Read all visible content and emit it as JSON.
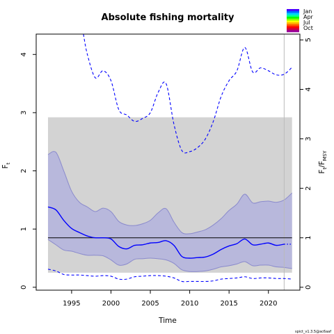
{
  "chart_data": {
    "type": "line",
    "title": "Absolute fishing mortality",
    "xlabel": "Time",
    "ylabel_left": {
      "main": "F",
      "sub": "t"
    },
    "ylabel_right": {
      "main": "F",
      "sub1": "t",
      "sep": "/F",
      "sub2": "MSY"
    },
    "xlim": [
      1990.5,
      2024
    ],
    "ylim": [
      -0.05,
      4.35
    ],
    "x_ticks": [
      1995,
      2000,
      2005,
      2010,
      2015,
      2020
    ],
    "y_ticks": [
      0,
      1,
      2,
      3,
      4
    ],
    "right_axis": {
      "fmsy": 0.85,
      "ticks": [
        0,
        1,
        2,
        3,
        4,
        5
      ]
    },
    "grid": false,
    "msy_band": {
      "x": [
        1992,
        2023
      ],
      "lower": 0.25,
      "upper": 2.92,
      "color": "#d3d3d3"
    },
    "reference_line": {
      "value": 0.85,
      "color": "#000000"
    },
    "last_obs_line": {
      "x": 2022,
      "color": "#bbbbbb"
    },
    "series": [
      {
        "role": "estimate",
        "color": "#0000ff",
        "x": [
          1992,
          1993,
          1994,
          1995,
          1996,
          1997,
          1998,
          1999,
          2000,
          2001,
          2002,
          2003,
          2004,
          2005,
          2006,
          2007,
          2008,
          2009,
          2010,
          2011,
          2012,
          2013,
          2014,
          2015,
          2016,
          2017,
          2018,
          2019,
          2020,
          2021,
          2022
        ],
        "y": [
          1.38,
          1.33,
          1.15,
          1.01,
          0.94,
          0.88,
          0.85,
          0.85,
          0.83,
          0.7,
          0.66,
          0.72,
          0.73,
          0.76,
          0.77,
          0.8,
          0.72,
          0.53,
          0.5,
          0.51,
          0.52,
          0.57,
          0.65,
          0.71,
          0.75,
          0.83,
          0.73,
          0.74,
          0.76,
          0.72,
          0.74
        ],
        "forecast": {
          "x": [
            2022,
            2023
          ],
          "y": [
            0.74,
            0.74
          ]
        }
      },
      {
        "role": "ci",
        "color": "#8a8acc",
        "x": [
          1992,
          1993,
          1994,
          1995,
          1996,
          1997,
          1998,
          1999,
          2000,
          2001,
          2002,
          2003,
          2004,
          2005,
          2006,
          2007,
          2008,
          2009,
          2010,
          2011,
          2012,
          2013,
          2014,
          2015,
          2016,
          2017,
          2018,
          2019,
          2020,
          2021,
          2022,
          2023
        ],
        "lower": [
          0.82,
          0.73,
          0.64,
          0.62,
          0.58,
          0.55,
          0.55,
          0.54,
          0.47,
          0.38,
          0.4,
          0.48,
          0.49,
          0.5,
          0.49,
          0.47,
          0.41,
          0.3,
          0.27,
          0.27,
          0.28,
          0.31,
          0.35,
          0.37,
          0.4,
          0.44,
          0.37,
          0.38,
          0.38,
          0.35,
          0.34,
          0.32
        ],
        "upper": [
          2.28,
          2.32,
          2.0,
          1.65,
          1.46,
          1.38,
          1.3,
          1.36,
          1.3,
          1.13,
          1.07,
          1.06,
          1.09,
          1.15,
          1.28,
          1.35,
          1.12,
          0.94,
          0.92,
          0.95,
          0.99,
          1.07,
          1.18,
          1.32,
          1.43,
          1.6,
          1.45,
          1.47,
          1.48,
          1.46,
          1.5,
          1.62
        ]
      },
      {
        "role": "fmsy_ci_lower",
        "color": "#0000ff",
        "x": [
          1992,
          1993,
          1994,
          1995,
          1996,
          1997,
          1998,
          1999,
          2000,
          2001,
          2002,
          2003,
          2004,
          2005,
          2006,
          2007,
          2008,
          2009,
          2010,
          2011,
          2012,
          2013,
          2014,
          2015,
          2016,
          2017,
          2018,
          2019,
          2020,
          2021,
          2022,
          2023
        ],
        "y": [
          0.31,
          0.28,
          0.22,
          0.21,
          0.21,
          0.2,
          0.19,
          0.2,
          0.19,
          0.14,
          0.14,
          0.18,
          0.19,
          0.2,
          0.2,
          0.19,
          0.16,
          0.1,
          0.1,
          0.1,
          0.1,
          0.11,
          0.14,
          0.15,
          0.16,
          0.18,
          0.15,
          0.16,
          0.16,
          0.15,
          0.15,
          0.14
        ]
      },
      {
        "role": "fmsy_ci_upper",
        "color": "#0000ff",
        "x": [
          1996.5,
          1997,
          1998,
          1999,
          2000,
          2001,
          2002,
          2003,
          2004,
          2005,
          2006,
          2007,
          2008,
          2009,
          2010,
          2011,
          2012,
          2013,
          2014,
          2015,
          2016,
          2017,
          2018,
          2019,
          2020,
          2021,
          2022,
          2023
        ],
        "y": [
          4.35,
          4.0,
          3.6,
          3.72,
          3.55,
          3.05,
          2.96,
          2.85,
          2.9,
          3.0,
          3.35,
          3.5,
          2.8,
          2.35,
          2.33,
          2.4,
          2.55,
          2.85,
          3.28,
          3.55,
          3.72,
          4.12,
          3.7,
          3.77,
          3.72,
          3.65,
          3.66,
          3.78
        ]
      }
    ],
    "legend": {
      "position": "top-right",
      "labels": [
        "Jan",
        "Apr",
        "Jul",
        "Oct"
      ],
      "colors": [
        "#4b00ff",
        "#0066ff",
        "#00ccff",
        "#00ff99",
        "#00ff00",
        "#88ff00",
        "#ffff00",
        "#ffaa00",
        "#ff5500",
        "#ff0000",
        "#cc0044",
        "#990099"
      ]
    },
    "footer": "spict_v1.3.5@ac6aaf"
  }
}
